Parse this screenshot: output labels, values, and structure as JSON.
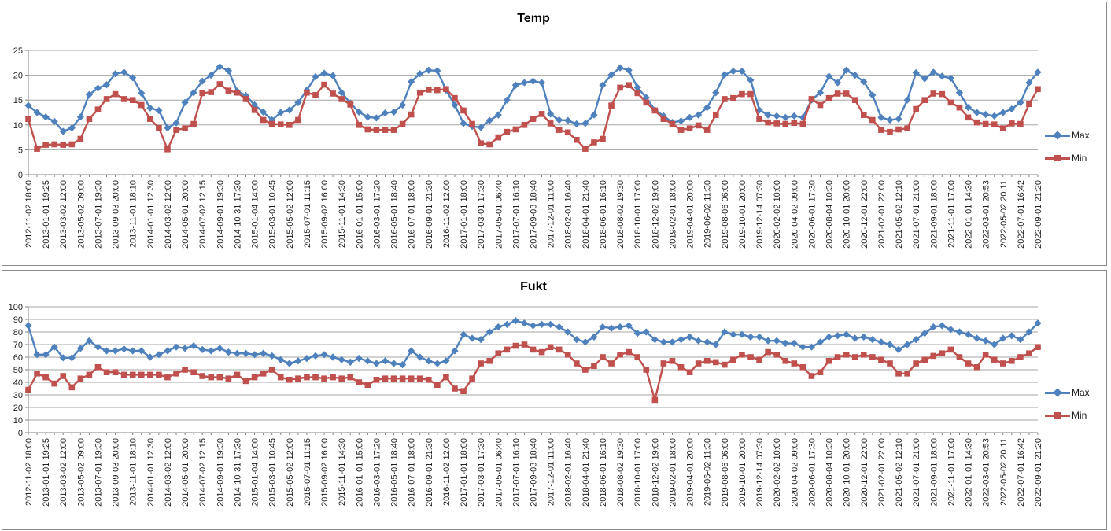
{
  "styles": {
    "background": "#FFFFFF",
    "panel_border": "#898989",
    "grid_color": "#A6A6A6",
    "axis_color": "#808080",
    "text_color": "#1f1f1f",
    "max_color": "#4F81BD",
    "min_color": "#C0504D"
  },
  "chart_data": [
    {
      "type": "line",
      "title": "Temp",
      "ylim": [
        0,
        25
      ],
      "y_step": 5,
      "y_ticks": [
        "0",
        "5",
        "10",
        "15",
        "20",
        "25"
      ],
      "grid": true,
      "legend_position": "right",
      "legend_labels": [
        "Max",
        "Min"
      ],
      "label_every_n_points": 2,
      "categories": [
        "2012-11-02 18:00",
        "2013-01-01 19:25",
        "2013-03-02 12:00",
        "2013-05-02 09:00",
        "2013-07-01 19:30",
        "2013-09-03 20:00",
        "2013-11-01 18:10",
        "2014-01-01 12:30",
        "2014-03-02 12:00",
        "2014-05-01 20:00",
        "2014-07-02 12:15",
        "2014-09-01 19:30",
        "2014-10-31 17:30",
        "2015-01-04 14:00",
        "2015-03-01 10:45",
        "2015-05-02 12:00",
        "2015-07-01 11:15",
        "2015-09-02 16:00",
        "2015-11-01 14:30",
        "2016-01-01 15:00",
        "2016-03-01 17:20",
        "2016-05-01 18:40",
        "2016-07-01 18:00",
        "2016-09-01 21:30",
        "2016-11-02 12:00",
        "2017-01-01 18:00",
        "2017-03-01 17:30",
        "2017-05-01 06:40",
        "2017-07-01 16:10",
        "2017-09-03 18:40",
        "2017-12-01 11:00",
        "2018-02-01 16:40",
        "2018-04-01 21:40",
        "2018-06-01 16:10",
        "2018-08-02 19:30",
        "2018-10-01 17:00",
        "2018-12-02 19:00",
        "2019-02-01 18:00",
        "2019-04-01 20:00",
        "2019-06-02 11:30",
        "2019-08-06 06:00",
        "2019-10-01 20:00",
        "2019-12-14 07:30",
        "2020-02-02 10:00",
        "2020-04-02 09:00",
        "2020-06-01 17:30",
        "2020-08-04 10:30",
        "2020-10-01 20:00",
        "2020-12-01 22:00",
        "2021-02-01 22:00",
        "2021-05-02 12:10",
        "2021-07-01 21:00",
        "2021-09-01 18:00",
        "2021-11-01 17:00",
        "2022-01-01 14:30",
        "2022-03-01 20:53",
        "2022-05-02 20:11",
        "2022-07-01 16:42",
        "2022-09-01 21:20"
      ],
      "series": [
        {
          "name": "Max",
          "color": "#4F81BD",
          "marker": "diamond",
          "values": [
            13.9,
            12.5,
            11.6,
            10.7,
            8.7,
            9.4,
            11.6,
            16.1,
            17.4,
            18.1,
            20.3,
            20.6,
            19.5,
            16.4,
            13.4,
            12.9,
            9.4,
            10.4,
            14.5,
            16.5,
            18.8,
            20.0,
            21.7,
            20.9,
            16.8,
            15.9,
            14.0,
            12.6,
            11.0,
            12.5,
            13.0,
            14.5,
            17.0,
            19.7,
            20.4,
            19.9,
            16.5,
            14.4,
            12.6,
            11.6,
            11.4,
            12.4,
            12.6,
            14.0,
            18.7,
            20.3,
            21.0,
            20.9,
            17.0,
            14.0,
            10.3,
            9.7,
            9.5,
            10.9,
            12.0,
            15.0,
            18.0,
            18.5,
            18.8,
            18.5,
            12.2,
            11.0,
            10.9,
            10.2,
            10.3,
            12.0,
            18.0,
            20.1,
            21.5,
            21.0,
            17.5,
            15.5,
            13.0,
            11.8,
            10.5,
            10.8,
            11.5,
            12.0,
            13.5,
            16.5,
            20.1,
            20.8,
            20.8,
            19.0,
            13.0,
            12.0,
            11.8,
            11.5,
            11.8,
            11.5,
            15.0,
            16.5,
            19.8,
            18.5,
            21.0,
            20.0,
            18.7,
            16.0,
            11.5,
            11.0,
            11.2,
            15.0,
            20.5,
            19.3,
            20.6,
            19.8,
            19.4,
            16.5,
            13.5,
            12.5,
            12.1,
            11.8,
            12.5,
            13.2,
            14.5,
            18.5,
            20.6
          ]
        },
        {
          "name": "Min",
          "color": "#C0504D",
          "marker": "square",
          "values": [
            11.2,
            5.2,
            6.0,
            6.1,
            6.0,
            6.1,
            7.2,
            11.2,
            13.1,
            15.2,
            16.2,
            15.2,
            15.0,
            14.0,
            11.2,
            9.4,
            5.1,
            9.0,
            9.3,
            10.2,
            16.4,
            16.6,
            18.2,
            16.9,
            16.5,
            15.2,
            13.0,
            11.0,
            10.2,
            10.1,
            10.0,
            11.0,
            16.5,
            16.0,
            18.1,
            16.3,
            15.2,
            14.1,
            10.0,
            9.1,
            9.0,
            9.0,
            9.0,
            10.2,
            12.1,
            16.5,
            17.1,
            17.0,
            17.2,
            15.4,
            12.9,
            10.2,
            6.3,
            6.1,
            7.5,
            8.6,
            9.1,
            10.0,
            11.2,
            12.2,
            10.3,
            9.0,
            8.5,
            7.0,
            5.2,
            6.5,
            7.2,
            13.9,
            17.5,
            18.0,
            16.4,
            14.5,
            12.9,
            11.2,
            10.2,
            9.0,
            9.3,
            9.9,
            9.0,
            12.0,
            15.2,
            15.4,
            16.2,
            16.2,
            11.2,
            10.5,
            10.3,
            10.2,
            10.4,
            10.2,
            15.2,
            14.0,
            15.4,
            16.3,
            16.3,
            15.0,
            12.0,
            11.0,
            9.0,
            8.6,
            9.1,
            9.3,
            13.2,
            15.0,
            16.3,
            16.2,
            14.5,
            13.5,
            11.5,
            10.5,
            10.2,
            10.1,
            9.3,
            10.3,
            10.2,
            14.2,
            17.2
          ]
        }
      ]
    },
    {
      "type": "line",
      "title": "Fukt",
      "ylim": [
        0,
        100
      ],
      "y_step": 10,
      "y_ticks": [
        "0",
        "10",
        "20",
        "30",
        "40",
        "50",
        "60",
        "70",
        "80",
        "90",
        "100"
      ],
      "grid": true,
      "legend_position": "right",
      "legend_labels": [
        "Max",
        "Min"
      ],
      "label_every_n_points": 2,
      "categories": [
        "2012-11-02 18:00",
        "2013-01-01 19:25",
        "2013-03-02 12:00",
        "2013-05-02 09:00",
        "2013-07-01 19:30",
        "2013-09-03 20:00",
        "2013-11-01 18:10",
        "2014-01-01 12:30",
        "2014-03-02 12:00",
        "2014-05-01 20:00",
        "2014-07-02 12:15",
        "2014-09-01 19:30",
        "2014-10-31 17:30",
        "2015-01-04 14:00",
        "2015-03-01 10:45",
        "2015-05-02 12:00",
        "2015-07-01 11:15",
        "2015-09-02 16:00",
        "2015-11-01 14:30",
        "2016-01-01 15:00",
        "2016-03-01 17:20",
        "2016-05-01 18:40",
        "2016-07-01 18:00",
        "2016-09-01 21:30",
        "2016-11-02 12:00",
        "2017-01-01 18:00",
        "2017-03-01 17:30",
        "2017-05-01 06:40",
        "2017-07-01 16:10",
        "2017-09-03 18:40",
        "2017-12-01 11:00",
        "2018-02-01 16:40",
        "2018-04-01 21:40",
        "2018-06-01 16:10",
        "2018-08-02 19:30",
        "2018-10-01 17:00",
        "2018-12-02 19:00",
        "2019-02-01 18:00",
        "2019-04-01 20:00",
        "2019-06-02 11:30",
        "2019-08-06 06:00",
        "2019-10-01 20:00",
        "2019-12-14 07:30",
        "2020-02-02 10:00",
        "2020-04-02 09:00",
        "2020-06-01 17:30",
        "2020-08-04 10:30",
        "2020-10-01 20:00",
        "2020-12-01 22:00",
        "2021-02-01 22:00",
        "2021-05-02 12:10",
        "2021-07-01 21:00",
        "2021-09-01 18:00",
        "2021-11-01 17:00",
        "2022-01-01 14:30",
        "2022-03-01 20:53",
        "2022-05-02 20:11",
        "2022-07-01 16:42",
        "2022-09-01 21:20"
      ],
      "series": [
        {
          "name": "Max",
          "color": "#4F81BD",
          "marker": "diamond",
          "values": [
            85,
            62,
            62,
            68,
            59.5,
            59.5,
            67,
            73,
            68,
            65,
            65,
            66.5,
            65,
            65,
            60,
            62,
            65,
            68,
            67,
            69,
            66,
            65,
            67,
            64,
            63,
            63,
            62,
            63,
            61,
            58,
            55,
            57,
            59,
            61,
            62,
            60,
            58,
            56,
            59,
            57,
            55,
            57,
            55,
            54,
            65,
            60,
            57,
            55,
            57,
            65,
            78,
            75,
            74,
            80,
            84,
            86,
            89,
            87,
            85,
            86,
            86,
            84,
            80,
            74,
            72,
            76,
            84,
            83,
            84,
            85,
            79,
            80,
            74,
            72,
            72,
            74,
            76,
            73,
            72,
            70,
            80,
            78,
            78,
            76,
            76,
            73,
            73,
            71,
            71,
            68,
            68,
            72,
            76,
            77,
            78,
            75,
            76,
            74,
            72,
            70,
            66,
            70,
            74,
            79,
            84,
            85,
            82,
            80,
            78,
            75,
            73,
            70,
            75,
            77,
            74,
            80,
            87
          ]
        },
        {
          "name": "Min",
          "color": "#C0504D",
          "marker": "square",
          "values": [
            34,
            47,
            44,
            39,
            45,
            36,
            43,
            46,
            52,
            48,
            48,
            46,
            46,
            46,
            46,
            46,
            44,
            47,
            50,
            48,
            45,
            44,
            44,
            43,
            46,
            41,
            44,
            47,
            50,
            44,
            42,
            43,
            44,
            44,
            43,
            44,
            43,
            44,
            40,
            38,
            42,
            43,
            43,
            43,
            43,
            43,
            42,
            38,
            44,
            35,
            33,
            43,
            55,
            57,
            63,
            66,
            69,
            70,
            66,
            64,
            68,
            66,
            62,
            55,
            50,
            53,
            60,
            55,
            62,
            64,
            60,
            50,
            26,
            55,
            57,
            52,
            48,
            55,
            57,
            56,
            54,
            58,
            62,
            60,
            58,
            64,
            62,
            57,
            55,
            52,
            45,
            48,
            57,
            60,
            62,
            60,
            62,
            60,
            58,
            55,
            47,
            47,
            55,
            58,
            61,
            63,
            66,
            60,
            55,
            52,
            62,
            58,
            55,
            57,
            60,
            63,
            68
          ]
        }
      ]
    }
  ]
}
